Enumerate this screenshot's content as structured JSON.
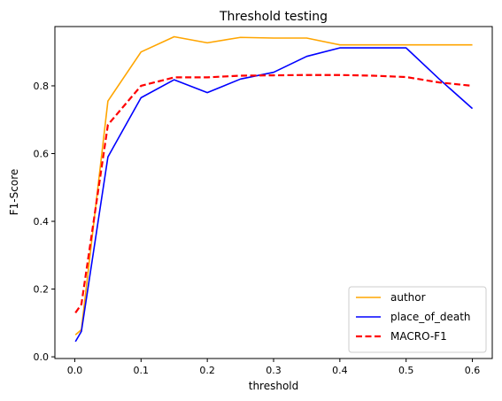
{
  "chart_data": {
    "type": "line",
    "title": "Threshold testing",
    "xlabel": "threshold",
    "ylabel": "F1-Score",
    "xlim": [
      -0.03,
      0.63
    ],
    "ylim": [
      -0.005,
      0.975
    ],
    "xticks": [
      0.0,
      0.1,
      0.2,
      0.3,
      0.4,
      0.5,
      0.6
    ],
    "xtick_labels": [
      "0.0",
      "0.1",
      "0.2",
      "0.3",
      "0.4",
      "0.5",
      "0.6"
    ],
    "yticks": [
      0.0,
      0.2,
      0.4,
      0.6,
      0.8
    ],
    "ytick_labels": [
      "0.0",
      "0.2",
      "0.4",
      "0.6",
      "0.8"
    ],
    "grid": false,
    "legend_position": "lower-right",
    "x": [
      0.001,
      0.01,
      0.05,
      0.1,
      0.15,
      0.2,
      0.25,
      0.3,
      0.35,
      0.4,
      0.45,
      0.5,
      0.55,
      0.6
    ],
    "series": [
      {
        "name": "author",
        "color": "#FFA500",
        "style": "solid",
        "values": [
          0.065,
          0.08,
          0.755,
          0.9,
          0.945,
          0.927,
          0.943,
          0.941,
          0.941,
          0.921,
          0.921,
          0.921,
          0.921,
          0.921
        ]
      },
      {
        "name": "place_of_death",
        "color": "#0000FF",
        "style": "solid",
        "values": [
          0.045,
          0.075,
          0.59,
          0.765,
          0.818,
          0.78,
          0.82,
          0.84,
          0.887,
          0.912,
          0.912,
          0.912,
          0.82,
          0.733
        ]
      },
      {
        "name": "MACRO-F1",
        "color": "#FF0000",
        "style": "dashed",
        "values": [
          0.13,
          0.155,
          0.685,
          0.8,
          0.825,
          0.825,
          0.83,
          0.831,
          0.832,
          0.832,
          0.83,
          0.826,
          0.81,
          0.8
        ]
      }
    ]
  }
}
